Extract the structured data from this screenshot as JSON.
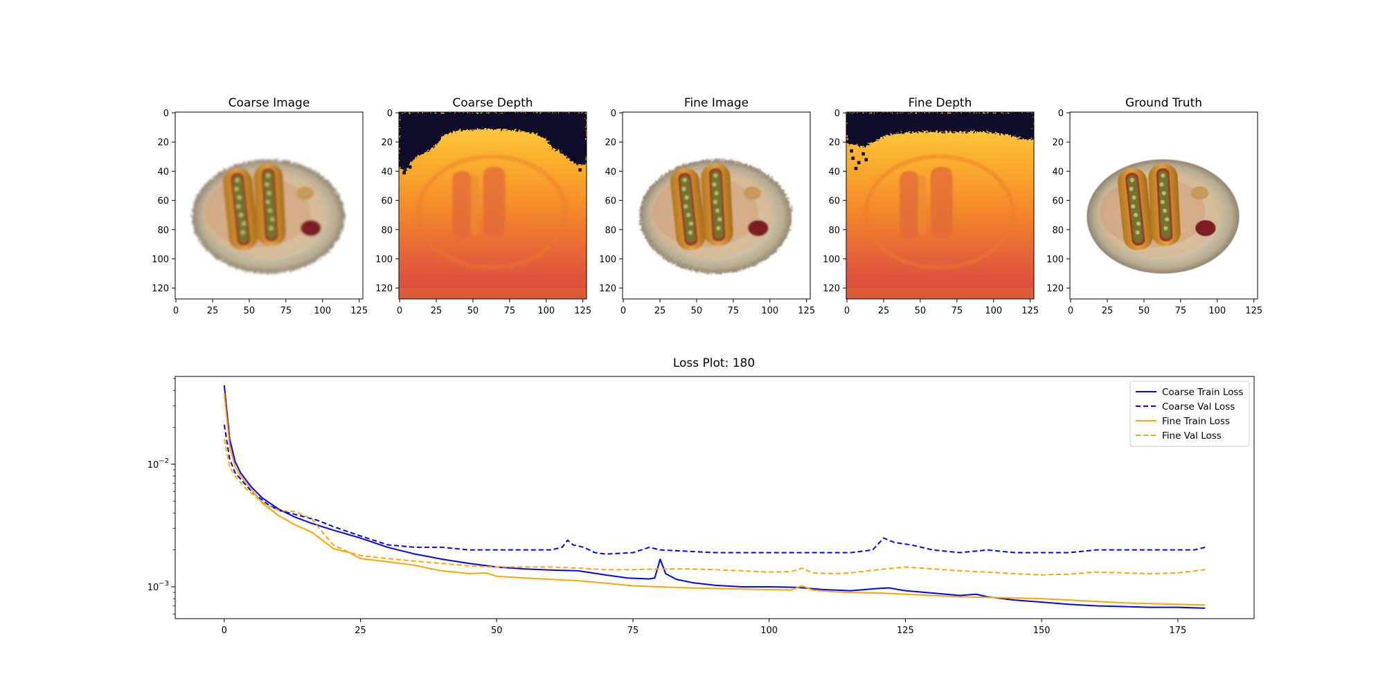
{
  "colors": {
    "coarse": "#0000ff",
    "fine": "#ffa500",
    "axis": "#000000",
    "depth_background": "#0d0829"
  },
  "panels": [
    {
      "title": "Coarse Image",
      "kind": "rgb",
      "blur": 1.6,
      "jagged": true
    },
    {
      "title": "Coarse Depth",
      "kind": "depth",
      "blur": 1.5,
      "jagged": true
    },
    {
      "title": "Fine Image",
      "kind": "rgb",
      "blur": 1.0,
      "jagged": true
    },
    {
      "title": "Fine Depth",
      "kind": "depth",
      "blur": 1.0,
      "jagged": true
    },
    {
      "title": "Ground Truth",
      "kind": "rgb",
      "blur": 0.5,
      "jagged": false
    }
  ],
  "image_axis": {
    "xlim": [
      -0.5,
      127.5
    ],
    "ylim": [
      -0.5,
      127.5
    ],
    "xticks": [
      0,
      25,
      50,
      75,
      100,
      125
    ],
    "yticks": [
      0,
      20,
      40,
      60,
      80,
      100,
      120
    ]
  },
  "chart_data": {
    "type": "line",
    "title": "Loss Plot: 180",
    "xlabel": "",
    "ylabel": "",
    "yscale": "log",
    "xlim": [
      -9,
      189
    ],
    "ylim": [
      0.00055,
      0.052
    ],
    "xticks": [
      0,
      25,
      50,
      75,
      100,
      125,
      150,
      175
    ],
    "yticks": [
      {
        "value": 0.01,
        "base": "10",
        "exp": "−2"
      },
      {
        "value": 0.001,
        "base": "10",
        "exp": "−3"
      }
    ],
    "legend_position": "top-right",
    "series": [
      {
        "name": "Coarse Train Loss",
        "color": "#0000ff",
        "dash": false,
        "points": [
          [
            0,
            0.044
          ],
          [
            1,
            0.016
          ],
          [
            2,
            0.0105
          ],
          [
            3,
            0.0085
          ],
          [
            5,
            0.0065
          ],
          [
            7,
            0.0053
          ],
          [
            10,
            0.0043
          ],
          [
            13,
            0.0037
          ],
          [
            16,
            0.0033
          ],
          [
            20,
            0.0029
          ],
          [
            25,
            0.0025
          ],
          [
            30,
            0.0021
          ],
          [
            35,
            0.00185
          ],
          [
            40,
            0.00168
          ],
          [
            45,
            0.00155
          ],
          [
            50,
            0.00145
          ],
          [
            55,
            0.0014
          ],
          [
            60,
            0.00137
          ],
          [
            65,
            0.00135
          ],
          [
            70,
            0.00125
          ],
          [
            74,
            0.00118
          ],
          [
            78,
            0.00116
          ],
          [
            79,
            0.00118
          ],
          [
            80,
            0.00168
          ],
          [
            81,
            0.00128
          ],
          [
            83,
            0.00115
          ],
          [
            86,
            0.00108
          ],
          [
            90,
            0.00103
          ],
          [
            95,
            0.001
          ],
          [
            100,
            0.001
          ],
          [
            105,
            0.00099
          ],
          [
            110,
            0.00095
          ],
          [
            115,
            0.00093
          ],
          [
            120,
            0.00097
          ],
          [
            122,
            0.00098
          ],
          [
            125,
            0.00093
          ],
          [
            130,
            0.00089
          ],
          [
            135,
            0.00085
          ],
          [
            138,
            0.00087
          ],
          [
            140,
            0.00083
          ],
          [
            145,
            0.00078
          ],
          [
            150,
            0.00075
          ],
          [
            155,
            0.00072
          ],
          [
            160,
            0.0007
          ],
          [
            165,
            0.00069
          ],
          [
            170,
            0.00068
          ],
          [
            175,
            0.00068
          ],
          [
            180,
            0.00067
          ]
        ]
      },
      {
        "name": "Coarse Val Loss",
        "color": "#0000ff",
        "dash": true,
        "points": [
          [
            0,
            0.021
          ],
          [
            1,
            0.011
          ],
          [
            2,
            0.0085
          ],
          [
            5,
            0.006
          ],
          [
            8,
            0.0047
          ],
          [
            10,
            0.0042
          ],
          [
            13,
            0.0039
          ],
          [
            17,
            0.0035
          ],
          [
            20,
            0.0031
          ],
          [
            25,
            0.0026
          ],
          [
            30,
            0.0022
          ],
          [
            35,
            0.0021
          ],
          [
            40,
            0.0021
          ],
          [
            45,
            0.002
          ],
          [
            50,
            0.002
          ],
          [
            55,
            0.002
          ],
          [
            60,
            0.002
          ],
          [
            62,
            0.0021
          ],
          [
            63,
            0.0024
          ],
          [
            64,
            0.0022
          ],
          [
            66,
            0.0021
          ],
          [
            68,
            0.0019
          ],
          [
            70,
            0.00185
          ],
          [
            75,
            0.0019
          ],
          [
            78,
            0.0021
          ],
          [
            80,
            0.002
          ],
          [
            85,
            0.00195
          ],
          [
            90,
            0.0019
          ],
          [
            95,
            0.0019
          ],
          [
            100,
            0.0019
          ],
          [
            105,
            0.0019
          ],
          [
            110,
            0.0019
          ],
          [
            115,
            0.0019
          ],
          [
            119,
            0.002
          ],
          [
            121,
            0.0025
          ],
          [
            123,
            0.0023
          ],
          [
            126,
            0.0022
          ],
          [
            130,
            0.002
          ],
          [
            135,
            0.0019
          ],
          [
            140,
            0.002
          ],
          [
            145,
            0.0019
          ],
          [
            150,
            0.0019
          ],
          [
            155,
            0.0019
          ],
          [
            160,
            0.002
          ],
          [
            165,
            0.002
          ],
          [
            170,
            0.002
          ],
          [
            175,
            0.002
          ],
          [
            178,
            0.002
          ],
          [
            180,
            0.0021
          ]
        ]
      },
      {
        "name": "Fine Train Loss",
        "color": "#ffa500",
        "dash": false,
        "points": [
          [
            0,
            0.038
          ],
          [
            1,
            0.014
          ],
          [
            2,
            0.0095
          ],
          [
            3,
            0.008
          ],
          [
            5,
            0.0062
          ],
          [
            7,
            0.0048
          ],
          [
            10,
            0.0038
          ],
          [
            13,
            0.0032
          ],
          [
            16,
            0.0028
          ],
          [
            18,
            0.0024
          ],
          [
            20,
            0.00205
          ],
          [
            23,
            0.0019
          ],
          [
            25,
            0.0017
          ],
          [
            30,
            0.0016
          ],
          [
            35,
            0.0015
          ],
          [
            38,
            0.0014
          ],
          [
            40,
            0.00135
          ],
          [
            45,
            0.00128
          ],
          [
            48,
            0.0013
          ],
          [
            50,
            0.00122
          ],
          [
            55,
            0.00118
          ],
          [
            60,
            0.00115
          ],
          [
            65,
            0.00112
          ],
          [
            70,
            0.00107
          ],
          [
            75,
            0.00102
          ],
          [
            80,
            0.001
          ],
          [
            85,
            0.00098
          ],
          [
            90,
            0.00097
          ],
          [
            95,
            0.00096
          ],
          [
            100,
            0.00095
          ],
          [
            104,
            0.00094
          ],
          [
            106,
            0.00102
          ],
          [
            108,
            0.00094
          ],
          [
            112,
            0.00091
          ],
          [
            115,
            0.0009
          ],
          [
            120,
            0.00089
          ],
          [
            125,
            0.00087
          ],
          [
            130,
            0.00085
          ],
          [
            135,
            0.00083
          ],
          [
            140,
            0.00082
          ],
          [
            145,
            0.00081
          ],
          [
            150,
            0.0008
          ],
          [
            155,
            0.00078
          ],
          [
            160,
            0.00076
          ],
          [
            165,
            0.00074
          ],
          [
            170,
            0.00073
          ],
          [
            175,
            0.00072
          ],
          [
            180,
            0.00071
          ]
        ]
      },
      {
        "name": "Fine Val Loss",
        "color": "#ffa500",
        "dash": true,
        "points": [
          [
            0,
            0.016
          ],
          [
            1,
            0.0095
          ],
          [
            2,
            0.008
          ],
          [
            4,
            0.0063
          ],
          [
            6,
            0.0053
          ],
          [
            8,
            0.0046
          ],
          [
            10,
            0.0042
          ],
          [
            13,
            0.0041
          ],
          [
            16,
            0.0036
          ],
          [
            18,
            0.0028
          ],
          [
            20,
            0.0022
          ],
          [
            23,
            0.0019
          ],
          [
            25,
            0.0018
          ],
          [
            30,
            0.0017
          ],
          [
            35,
            0.00162
          ],
          [
            40,
            0.00155
          ],
          [
            45,
            0.00148
          ],
          [
            50,
            0.00145
          ],
          [
            55,
            0.00145
          ],
          [
            60,
            0.00145
          ],
          [
            65,
            0.00142
          ],
          [
            70,
            0.00138
          ],
          [
            75,
            0.00138
          ],
          [
            80,
            0.0014
          ],
          [
            85,
            0.0014
          ],
          [
            90,
            0.00138
          ],
          [
            95,
            0.00135
          ],
          [
            100,
            0.00132
          ],
          [
            104,
            0.00133
          ],
          [
            106,
            0.00142
          ],
          [
            108,
            0.0013
          ],
          [
            112,
            0.00128
          ],
          [
            115,
            0.0013
          ],
          [
            120,
            0.00138
          ],
          [
            125,
            0.00145
          ],
          [
            130,
            0.0014
          ],
          [
            135,
            0.00135
          ],
          [
            140,
            0.00132
          ],
          [
            145,
            0.00128
          ],
          [
            150,
            0.00125
          ],
          [
            155,
            0.00127
          ],
          [
            160,
            0.00132
          ],
          [
            165,
            0.0013
          ],
          [
            170,
            0.00128
          ],
          [
            175,
            0.0013
          ],
          [
            180,
            0.00138
          ]
        ]
      }
    ]
  }
}
